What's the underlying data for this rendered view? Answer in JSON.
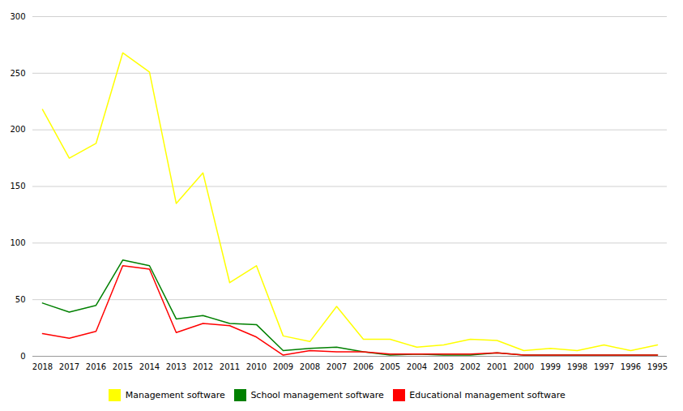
{
  "chart_data": {
    "type": "line",
    "categories": [
      "2018",
      "2017",
      "2016",
      "2015",
      "2014",
      "2013",
      "2012",
      "2011",
      "2010",
      "2009",
      "2008",
      "2007",
      "2006",
      "2005",
      "2004",
      "2003",
      "2002",
      "2001",
      "2000",
      "1999",
      "1998",
      "1997",
      "1996",
      "1995"
    ],
    "series": [
      {
        "name": "Management software",
        "color": "#ffff00",
        "values": [
          218,
          175,
          188,
          268,
          251,
          135,
          162,
          65,
          80,
          18,
          13,
          44,
          15,
          15,
          8,
          10,
          15,
          14,
          5,
          7,
          5,
          10,
          5,
          10
        ]
      },
      {
        "name": "School management software",
        "color": "#008000",
        "values": [
          47,
          39,
          45,
          85,
          80,
          33,
          36,
          29,
          28,
          5,
          7,
          8,
          4,
          1,
          2,
          1,
          1,
          3,
          1,
          1,
          1,
          1,
          1,
          1
        ]
      },
      {
        "name": "Educational management software",
        "color": "#ff0000",
        "values": [
          20,
          16,
          22,
          80,
          77,
          21,
          29,
          27,
          17,
          1,
          5,
          4,
          4,
          2,
          2,
          2,
          2,
          3,
          1,
          1,
          1,
          1,
          1,
          1
        ]
      }
    ],
    "ylim": [
      0,
      300
    ],
    "yticks": [
      0,
      50,
      100,
      150,
      200,
      250,
      300
    ],
    "grid": true,
    "legend": "bottom"
  }
}
